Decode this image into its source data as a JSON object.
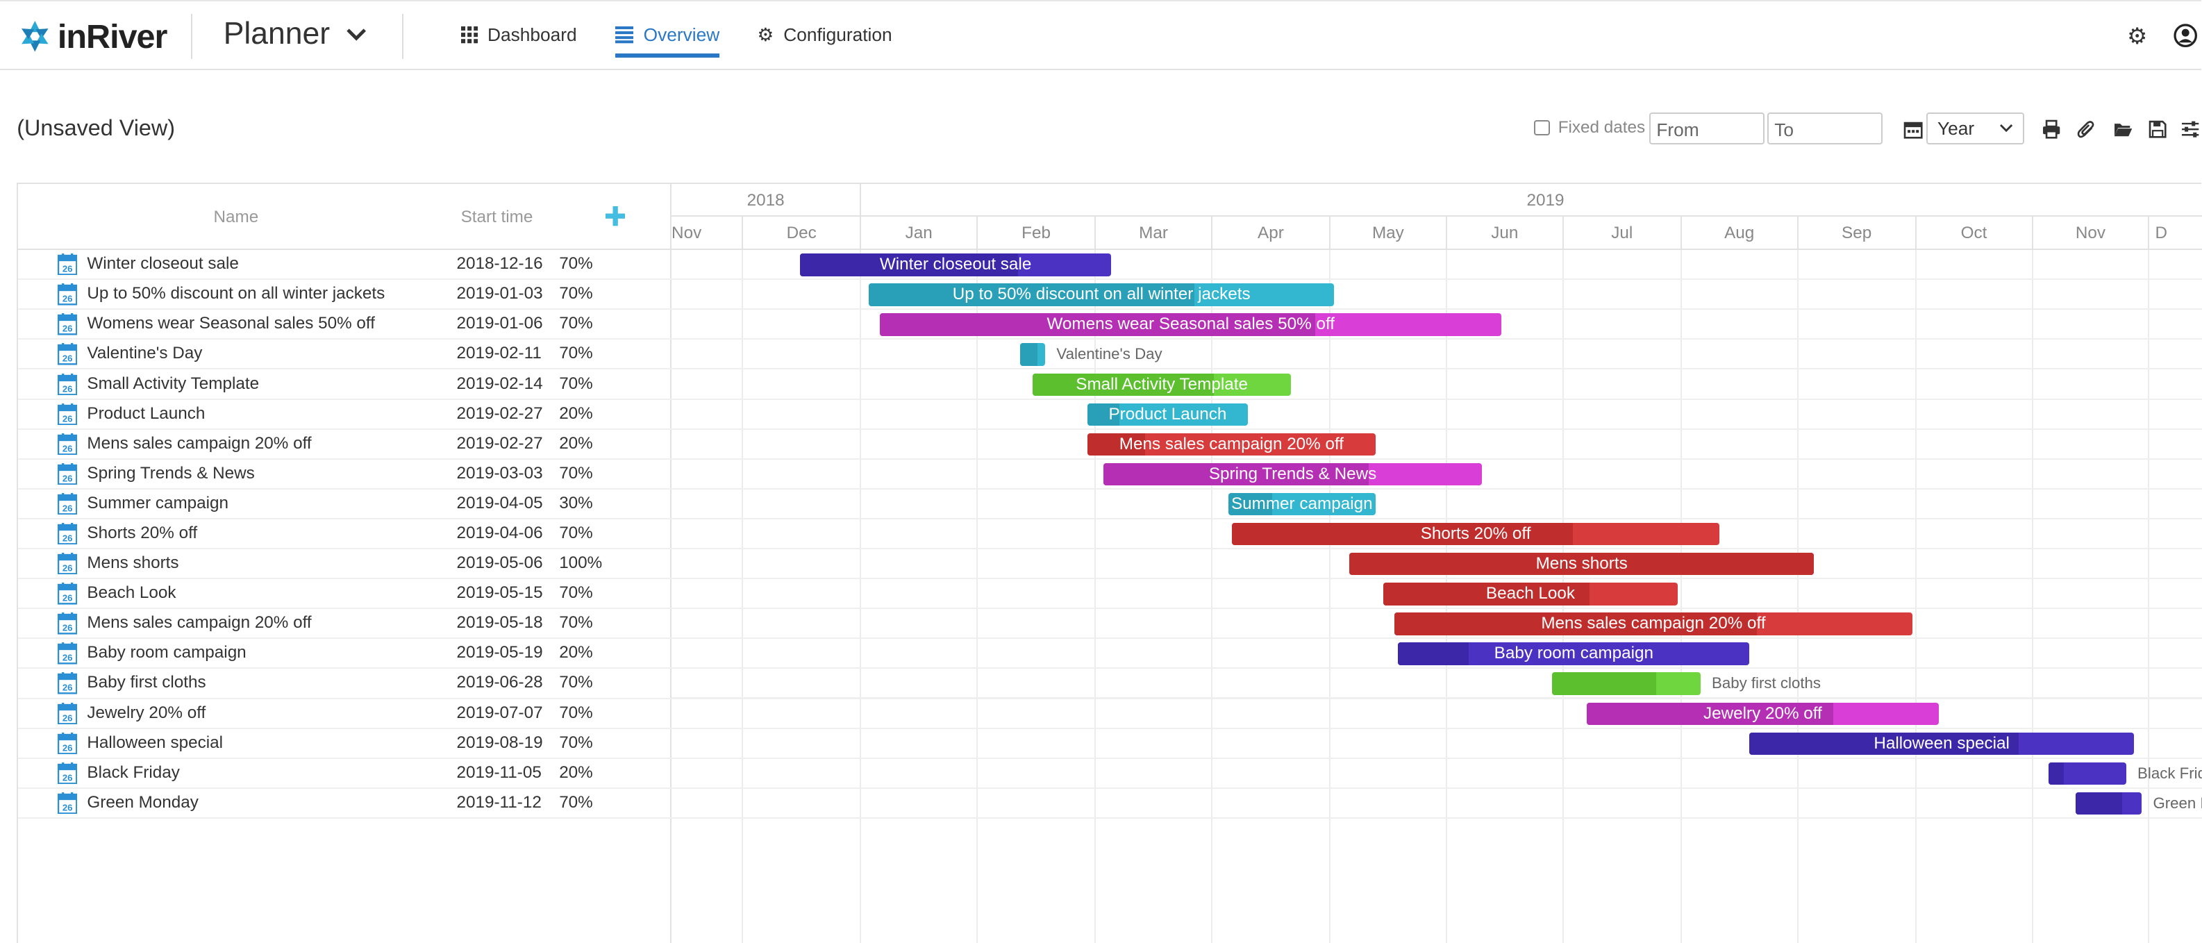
{
  "brand": {
    "name": "inRiver"
  },
  "app": {
    "title": "Planner"
  },
  "nav": [
    {
      "label": "Dashboard",
      "icon": "grid-icon"
    },
    {
      "label": "Overview",
      "icon": "list-icon",
      "active": true
    },
    {
      "label": "Configuration",
      "icon": "gear-icon"
    }
  ],
  "view": {
    "title": "(Unsaved View)"
  },
  "toolbar": {
    "fixed_dates_label": "Fixed dates",
    "from_placeholder": "From",
    "to_placeholder": "To",
    "period": "Year"
  },
  "grid": {
    "columns": {
      "name": "Name",
      "start": "Start time"
    }
  },
  "timeline": {
    "years": [
      {
        "label": "2018"
      },
      {
        "label": "2019"
      }
    ],
    "months": [
      "Nov",
      "Dec",
      "Jan",
      "Feb",
      "Mar",
      "Apr",
      "May",
      "Jun",
      "Jul",
      "Aug",
      "Sep",
      "Oct",
      "Nov",
      "D"
    ]
  },
  "tasks": [
    {
      "name": "Winter closeout sale",
      "start": "2018-12-16",
      "progress": "70%",
      "color": "#4b32c3",
      "prog_color": "#3c27a8",
      "end": "2019-03-05",
      "inside": true
    },
    {
      "name": "Up to 50% discount on all winter jackets",
      "start": "2019-01-03",
      "progress": "70%",
      "color": "#33b7d0",
      "prog_color": "#2aa0b8",
      "end": "2019-05-02",
      "inside": true
    },
    {
      "name": "Womens wear Seasonal sales 50% off",
      "start": "2019-01-06",
      "progress": "70%",
      "color": "#d93fd6",
      "prog_color": "#b52fb5",
      "end": "2019-06-15",
      "inside": true
    },
    {
      "name": "Valentine's Day",
      "start": "2019-02-11",
      "progress": "70%",
      "color": "#33b7d0",
      "prog_color": "#2aa0b8",
      "end": "2019-02-17",
      "inside": false
    },
    {
      "name": "Small Activity Template",
      "start": "2019-02-14",
      "progress": "70%",
      "color": "#6fd63f",
      "prog_color": "#5bbf2e",
      "end": "2019-04-21",
      "inside": true
    },
    {
      "name": "Product Launch",
      "start": "2019-02-27",
      "progress": "20%",
      "color": "#33b7d0",
      "prog_color": "#2aa0b8",
      "end": "2019-04-10",
      "inside": true
    },
    {
      "name": "Mens sales campaign 20% off",
      "start": "2019-02-27",
      "progress": "20%",
      "color": "#d83b3b",
      "prog_color": "#c02d2d",
      "end": "2019-05-13",
      "inside": true
    },
    {
      "name": "Spring Trends & News",
      "start": "2019-03-03",
      "progress": "70%",
      "color": "#d93fd6",
      "prog_color": "#b52fb5",
      "end": "2019-06-10",
      "inside": true
    },
    {
      "name": "Summer campaign",
      "start": "2019-04-05",
      "progress": "30%",
      "color": "#33b7d0",
      "prog_color": "#2aa0b8",
      "end": "2019-05-13",
      "inside": true
    },
    {
      "name": "Shorts 20% off",
      "start": "2019-04-06",
      "progress": "70%",
      "color": "#d83b3b",
      "prog_color": "#c02d2d",
      "end": "2019-08-11",
      "inside": true
    },
    {
      "name": "Mens shorts",
      "start": "2019-05-06",
      "progress": "100%",
      "color": "#d83b3b",
      "prog_color": "#c02d2d",
      "end": "2019-09-05",
      "inside": true
    },
    {
      "name": "Beach Look",
      "start": "2019-05-15",
      "progress": "70%",
      "color": "#d83b3b",
      "prog_color": "#c02d2d",
      "end": "2019-07-31",
      "inside": true
    },
    {
      "name": "Mens sales campaign 20% off",
      "start": "2019-05-18",
      "progress": "70%",
      "color": "#d83b3b",
      "prog_color": "#c02d2d",
      "end": "2019-09-30",
      "inside": true
    },
    {
      "name": "Baby room campaign",
      "start": "2019-05-19",
      "progress": "20%",
      "color": "#4b32c3",
      "prog_color": "#3c27a8",
      "end": "2019-08-19",
      "inside": true
    },
    {
      "name": "Baby first cloths",
      "start": "2019-06-28",
      "progress": "70%",
      "color": "#6fd63f",
      "prog_color": "#5bbf2e",
      "end": "2019-08-06",
      "inside": false
    },
    {
      "name": "Jewelry 20% off",
      "start": "2019-07-07",
      "progress": "70%",
      "color": "#d93fd6",
      "prog_color": "#b52fb5",
      "end": "2019-10-07",
      "inside": true
    },
    {
      "name": "Halloween special",
      "start": "2019-08-19",
      "progress": "70%",
      "color": "#4b32c3",
      "prog_color": "#3c27a8",
      "end": "2019-11-27",
      "inside": true
    },
    {
      "name": "Black Friday",
      "start": "2019-11-05",
      "progress": "20%",
      "color": "#4b32c3",
      "prog_color": "#3c27a8",
      "end": "2019-11-25",
      "inside": false
    },
    {
      "name": "Green Monday",
      "start": "2019-11-12",
      "progress": "70%",
      "color": "#4b32c3",
      "prog_color": "#3c27a8",
      "end": "2019-11-29",
      "inside": false
    }
  ],
  "colors": {
    "accent": "#2a78c5",
    "plus": "#44bde0",
    "calendar_icon": "#2a8fd4"
  }
}
